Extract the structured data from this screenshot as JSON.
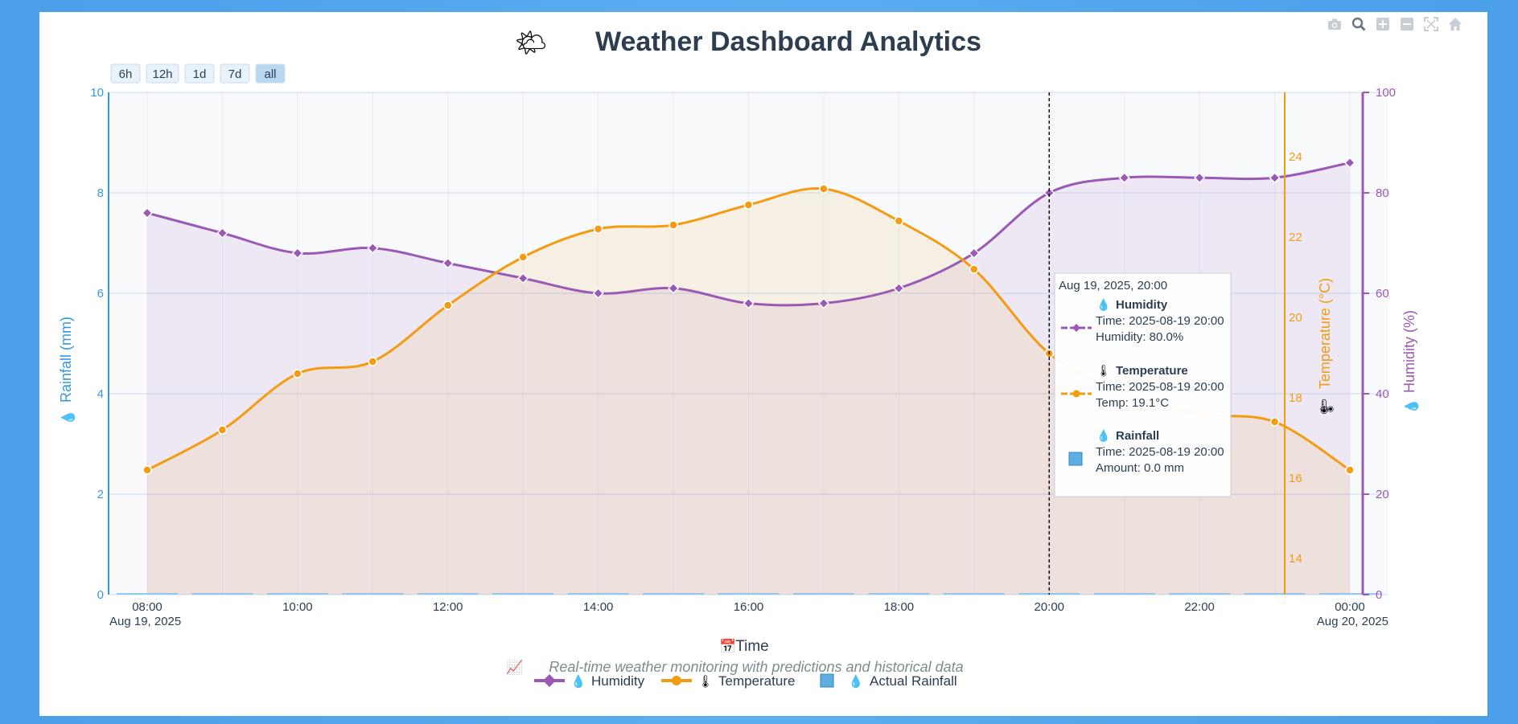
{
  "title": "Weather Dashboard Analytics",
  "title_emoji": "🌤",
  "range_buttons": [
    "6h",
    "12h",
    "1d",
    "7d",
    "all"
  ],
  "range_active": "all",
  "modebar_icons": [
    "camera-icon",
    "zoom-icon",
    "zoom-in-icon",
    "zoom-out-icon",
    "autoscale-icon",
    "home-icon"
  ],
  "colors": {
    "humidity": "#9b59b6",
    "temperature": "#f39c12",
    "rainfall": "#3498db",
    "rain_marker": "#5dade2",
    "title": "#2c3e50"
  },
  "chart_data": {
    "type": "line",
    "x_dates": [
      "2025-08-19 08:00",
      "2025-08-19 09:00",
      "2025-08-19 10:00",
      "2025-08-19 11:00",
      "2025-08-19 12:00",
      "2025-08-19 13:00",
      "2025-08-19 14:00",
      "2025-08-19 15:00",
      "2025-08-19 16:00",
      "2025-08-19 17:00",
      "2025-08-19 18:00",
      "2025-08-19 19:00",
      "2025-08-19 20:00",
      "2025-08-19 21:00",
      "2025-08-19 22:00",
      "2025-08-19 23:00",
      "2025-08-20 00:00"
    ],
    "x_ticks": [
      {
        "label": "08:00",
        "sub": "Aug 19, 2025"
      },
      {
        "label": "10:00",
        "sub": ""
      },
      {
        "label": "12:00",
        "sub": ""
      },
      {
        "label": "14:00",
        "sub": ""
      },
      {
        "label": "16:00",
        "sub": ""
      },
      {
        "label": "18:00",
        "sub": ""
      },
      {
        "label": "20:00",
        "sub": ""
      },
      {
        "label": "22:00",
        "sub": ""
      },
      {
        "label": "00:00",
        "sub": "Aug 20, 2025"
      }
    ],
    "xlabel": "Time",
    "xlabel_emoji": "📅",
    "series": [
      {
        "name": "Humidity",
        "emoji": "💧",
        "axis": "y3",
        "unit": "%",
        "values": [
          76,
          72,
          68,
          69,
          66,
          63,
          60,
          61,
          58,
          58,
          61,
          68,
          80,
          83,
          83,
          83,
          86
        ]
      },
      {
        "name": "Temperature",
        "emoji": "🌡",
        "axis": "y2",
        "unit": "°C",
        "values": [
          16.2,
          17.2,
          18.6,
          18.9,
          20.3,
          21.5,
          22.2,
          22.3,
          22.8,
          23.2,
          22.4,
          21.2,
          19.1,
          18.1,
          17.6,
          17.4,
          16.2
        ]
      },
      {
        "name": "Actual Rainfall",
        "emoji": "💧",
        "axis": "y",
        "unit": "mm",
        "values": [
          0,
          0,
          0,
          0,
          0,
          0,
          0,
          0,
          0,
          0,
          0,
          0,
          0,
          0,
          0,
          0,
          0
        ]
      }
    ],
    "y_axis": {
      "label": "Rainfall (mm)",
      "emoji": "💧",
      "range": [
        0,
        10
      ],
      "ticks": [
        "0",
        "2",
        "4",
        "6",
        "8",
        "10"
      ]
    },
    "y2_axis": {
      "label": "Temperature (°C)",
      "emoji": "🌡",
      "range": [
        13.1,
        25.6
      ],
      "ticks": [
        "14",
        "16",
        "18",
        "20",
        "22",
        "24"
      ]
    },
    "y3_axis": {
      "label": "Humidity (%)",
      "emoji": "💧",
      "range": [
        0,
        100
      ],
      "ticks": [
        "0",
        "20",
        "40",
        "60",
        "80",
        "100"
      ]
    },
    "grid": true,
    "legend_position": "bottom-center",
    "hover_index": 12
  },
  "subtitle": "Real-time weather monitoring with predictions and historical data",
  "subtitle_emoji": "📈",
  "legend": [
    {
      "label": "Humidity",
      "emoji": "💧"
    },
    {
      "label": "Temperature",
      "emoji": "🌡"
    },
    {
      "label": "Actual Rainfall",
      "emoji": "💧"
    }
  ],
  "tooltip": {
    "header": "Aug 19, 2025, 20:00",
    "sections": [
      {
        "emoji": "💧",
        "title": "Humidity",
        "line1": "Time: 2025-08-19 20:00",
        "line2": "Humidity: 80.0%"
      },
      {
        "emoji": "🌡",
        "title": "Temperature",
        "line1": "Time: 2025-08-19 20:00",
        "line2": "Temp: 19.1°C"
      },
      {
        "emoji": "💧",
        "title": "Rainfall",
        "line1": "Time: 2025-08-19 20:00",
        "line2": "Amount: 0.0 mm"
      }
    ]
  }
}
